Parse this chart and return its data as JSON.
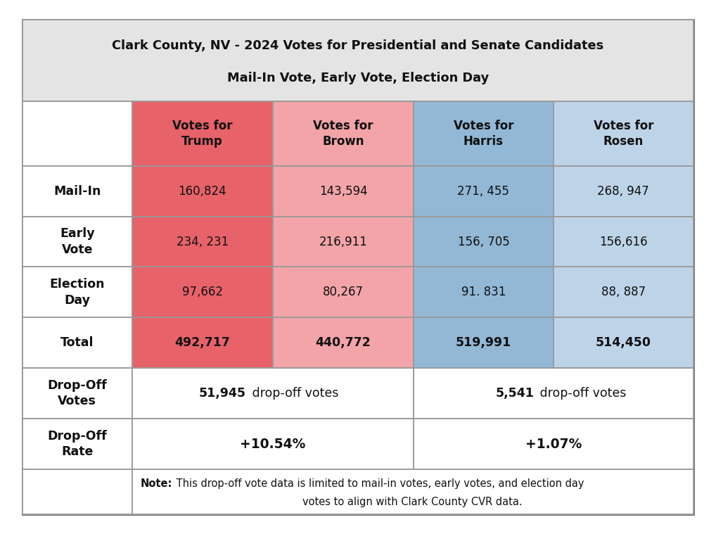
{
  "title_line1": "Clark County, NV - 2024 Votes for Presidential and Senate Candidates",
  "title_line2": "Mail-In Vote, Early Vote, Election Day",
  "col_headers": [
    "Votes for\nTrump",
    "Votes for\nBrown",
    "Votes for\nHarris",
    "Votes for\nRosen"
  ],
  "row_labels": [
    "Mail-In",
    "Early\nVote",
    "Election\nDay",
    "Total",
    "Drop-Off\nVotes",
    "Drop-Off\nRate",
    ""
  ],
  "data": [
    [
      "160,824",
      "143,594",
      "271, 455",
      "268, 947"
    ],
    [
      "234, 231",
      "216,911",
      "156, 705",
      "156,616"
    ],
    [
      "97,662",
      "80,267",
      "91. 831",
      "88, 887"
    ],
    [
      "492,717",
      "440,772",
      "519,991",
      "514,450"
    ]
  ],
  "dropoff_votes_rep": "51,945",
  "dropoff_votes_rep_suffix": " drop-off votes",
  "dropoff_votes_dem": "5,541",
  "dropoff_votes_dem_suffix": " drop-off votes",
  "dropoff_rate_rep": "+10.54%",
  "dropoff_rate_dem": "+1.07%",
  "note_bold": "Note:",
  "note_line1": " This drop-off vote data is limited to mail-in votes, early votes, and election day",
  "note_line2": "votes to align with Clark County CVR data.",
  "color_trump": "#E8626A",
  "color_brown": "#F2A4A8",
  "color_harris": "#92B8D6",
  "color_rosen": "#BDD4E8",
  "color_white": "#FFFFFF",
  "color_title_bg": "#E4E4E4",
  "color_text_dark": "#111111",
  "fig_width": 10.18,
  "fig_height": 7.59,
  "dpi": 100
}
